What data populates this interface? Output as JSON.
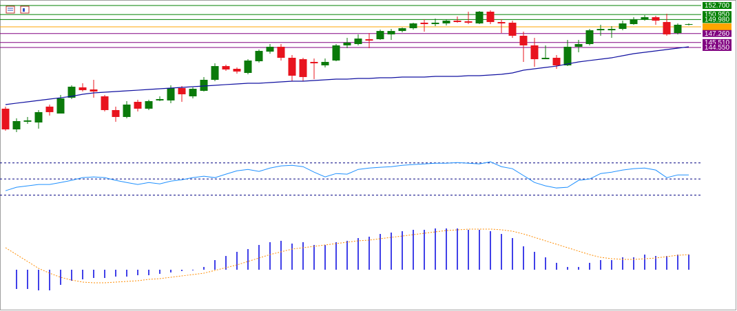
{
  "chart_data": [
    {
      "type": "candlestick",
      "categories": [
        null,
        null,
        null,
        null,
        null,
        null,
        null,
        null,
        null,
        null,
        null,
        null,
        null,
        null,
        null,
        null,
        null,
        null,
        null,
        null,
        null,
        null,
        null,
        null,
        null,
        null,
        null,
        null,
        null,
        null,
        null,
        null,
        null,
        null,
        null,
        null,
        null,
        null,
        null,
        null,
        null,
        null,
        null,
        null,
        null,
        null,
        null,
        null,
        null,
        null,
        null,
        null,
        null,
        null,
        null,
        null,
        null,
        null,
        null,
        null,
        null,
        null,
        null
      ],
      "open": [
        132.65,
        128.63,
        130.11,
        129.97,
        133.05,
        131.71,
        134.78,
        136.79,
        136.39,
        135.05,
        132.38,
        131.04,
        133.98,
        132.65,
        134.25,
        134.25,
        136.66,
        135.05,
        136.12,
        138.26,
        140.93,
        140.4,
        139.6,
        141.87,
        143.74,
        144.68,
        142.54,
        142.27,
        141.74,
        141.07,
        142.01,
        144.95,
        145.21,
        146.15,
        146.15,
        147.09,
        147.75,
        148.29,
        149.36,
        149.09,
        149.22,
        149.76,
        149.63,
        149.22,
        151.5,
        149.49,
        149.36,
        146.82,
        144.95,
        142.27,
        142.54,
        141.07,
        144.68,
        145.21,
        147.89,
        147.89,
        148.15,
        149.09,
        150.03,
        150.43,
        149.49,
        147.35,
        148.96
      ],
      "high": [
        133.05,
        130.77,
        131.04,
        132.38,
        133.45,
        135.32,
        137.19,
        137.59,
        138.26,
        135.32,
        133.05,
        134.12,
        134.38,
        134.38,
        135.05,
        137.19,
        137.06,
        136.79,
        138.8,
        141.47,
        141.2,
        140.67,
        142.27,
        144.14,
        145.21,
        145.21,
        143.07,
        142.54,
        142.41,
        142.41,
        145.21,
        146.42,
        147.09,
        147.35,
        148.02,
        148.15,
        148.42,
        149.36,
        150.03,
        150.16,
        150.03,
        150.56,
        151.5,
        151.63,
        151.76,
        150.03,
        149.76,
        147.62,
        146.42,
        144.95,
        143.07,
        146.02,
        146.02,
        148.15,
        148.96,
        148.69,
        149.76,
        150.43,
        150.83,
        150.69,
        151.1,
        149.22,
        149.22
      ],
      "low": [
        128.37,
        128.1,
        129.7,
        128.77,
        131.31,
        131.71,
        134.52,
        135.99,
        134.78,
        132.11,
        130.11,
        130.77,
        132.11,
        132.38,
        134.12,
        133.72,
        133.98,
        134.65,
        135.99,
        137.99,
        140.0,
        139.46,
        139.33,
        141.6,
        143.34,
        142.01,
        137.99,
        137.99,
        138.39,
        140.67,
        141.87,
        144.41,
        144.95,
        144.41,
        146.02,
        146.02,
        147.49,
        148.02,
        147.62,
        148.69,
        148.82,
        149.36,
        149.09,
        149.09,
        149.09,
        147.35,
        146.42,
        141.74,
        140.8,
        142.27,
        140.4,
        140.93,
        143.61,
        144.95,
        146.82,
        146.42,
        147.89,
        148.96,
        149.76,
        148.96,
        146.82,
        147.09,
        148.82
      ],
      "close": [
        128.63,
        130.24,
        130.37,
        131.98,
        131.98,
        134.65,
        136.92,
        136.25,
        135.99,
        132.38,
        131.04,
        133.45,
        132.65,
        134.12,
        134.52,
        136.66,
        135.45,
        136.52,
        138.26,
        140.93,
        140.27,
        139.87,
        142.01,
        143.88,
        144.68,
        142.54,
        139.06,
        138.8,
        141.47,
        141.74,
        144.95,
        145.48,
        146.28,
        145.88,
        147.75,
        147.75,
        148.29,
        149.22,
        149.09,
        149.36,
        149.76,
        149.49,
        149.36,
        151.5,
        149.49,
        149.22,
        146.82,
        144.95,
        142.27,
        142.54,
        141.07,
        144.68,
        145.21,
        147.89,
        148.15,
        148.15,
        149.22,
        150.03,
        150.43,
        149.76,
        147.09,
        148.96,
        149.09
      ],
      "up_color": "#0b7a0b",
      "down_color": "#e8141e",
      "moving_average": {
        "color": "#1010a0",
        "values": [
          133.45,
          133.72,
          133.98,
          134.25,
          134.52,
          134.78,
          135.05,
          135.45,
          135.72,
          135.85,
          135.99,
          136.12,
          136.25,
          136.39,
          136.52,
          136.66,
          136.79,
          136.92,
          137.06,
          137.19,
          137.33,
          137.46,
          137.59,
          137.59,
          137.73,
          137.86,
          137.99,
          137.99,
          138.13,
          138.26,
          138.39,
          138.39,
          138.53,
          138.53,
          138.66,
          138.66,
          138.8,
          138.8,
          138.8,
          138.93,
          138.93,
          138.93,
          139.06,
          139.06,
          139.2,
          139.33,
          139.6,
          140.13,
          140.4,
          140.67,
          140.93,
          141.34,
          141.74,
          142.01,
          142.27,
          142.54,
          142.94,
          143.34,
          143.61,
          143.88,
          144.14,
          144.41,
          144.68
        ]
      },
      "ylim": [
        127.03,
        153.77
      ],
      "levels": [
        {
          "value": 152.7,
          "label": "152.700",
          "color": "#008000"
        },
        {
          "value": 150.95,
          "label": "150.950",
          "color": "#008000"
        },
        {
          "value": 149.98,
          "label": "149.980",
          "color": "#008000"
        },
        {
          "value": 148.56,
          "color": "#ffa500"
        },
        {
          "value": 147.26,
          "label": "147.260",
          "color": "#800080"
        },
        {
          "value": 145.51,
          "label": "145.510",
          "color": "#800080"
        },
        {
          "value": 144.55,
          "label": "144.550",
          "color": "#800080"
        }
      ]
    },
    {
      "type": "line",
      "values": [
        35.5,
        39.8,
        41.5,
        43.2,
        43.2,
        45.7,
        48.3,
        51.7,
        52.6,
        51.7,
        48.3,
        45.7,
        43.2,
        45.7,
        44.0,
        47.4,
        49.1,
        51.7,
        53.4,
        51.7,
        56.0,
        60.2,
        61.9,
        59.4,
        63.6,
        66.2,
        67.0,
        65.3,
        58.5,
        52.6,
        56.8,
        56.0,
        61.9,
        63.6,
        64.5,
        65.3,
        67.0,
        67.9,
        68.7,
        69.6,
        69.6,
        70.4,
        69.6,
        68.7,
        71.3,
        65.3,
        62.8,
        54.3,
        45.7,
        41.5,
        38.9,
        39.8,
        48.3,
        50.0,
        56.8,
        58.5,
        61.1,
        62.8,
        63.6,
        61.1,
        51.7,
        55.1,
        55.1
      ],
      "color": "#1e90ff",
      "ylim": [
        22,
        80
      ],
      "levels": [
        30,
        50,
        70
      ],
      "level_color": "#000080"
    },
    {
      "type": "macd",
      "values": [
        null,
        -0.28,
        -0.28,
        -0.3,
        -0.3,
        -0.22,
        -0.16,
        -0.14,
        -0.12,
        -0.12,
        -0.1,
        -0.1,
        -0.08,
        -0.08,
        -0.06,
        -0.04,
        -0.02,
        -0.01,
        0.04,
        0.14,
        0.2,
        0.26,
        0.3,
        0.36,
        0.4,
        0.42,
        0.38,
        0.4,
        0.36,
        0.36,
        0.4,
        0.42,
        0.46,
        0.48,
        0.52,
        0.54,
        0.56,
        0.58,
        0.58,
        0.6,
        0.6,
        0.6,
        0.58,
        0.58,
        0.56,
        0.52,
        0.46,
        0.34,
        0.26,
        0.18,
        0.1,
        0.04,
        0.04,
        0.1,
        0.14,
        0.14,
        0.18,
        0.18,
        0.22,
        0.2,
        0.2,
        0.22,
        0.22
      ],
      "color": "#0000e0",
      "signal": {
        "color": "#ff8c00",
        "values": [
          0.32,
          0.22,
          0.12,
          0.02,
          -0.05,
          -0.11,
          -0.15,
          -0.18,
          -0.19,
          -0.19,
          -0.18,
          -0.17,
          -0.16,
          -0.14,
          -0.13,
          -0.11,
          -0.09,
          -0.07,
          -0.05,
          -0.01,
          0.03,
          0.07,
          0.12,
          0.17,
          0.22,
          0.26,
          0.3,
          0.32,
          0.34,
          0.36,
          0.38,
          0.4,
          0.42,
          0.43,
          0.45,
          0.47,
          0.49,
          0.51,
          0.53,
          0.55,
          0.57,
          0.58,
          0.59,
          0.59,
          0.59,
          0.58,
          0.56,
          0.52,
          0.47,
          0.42,
          0.37,
          0.32,
          0.27,
          0.22,
          0.18,
          0.16,
          0.15,
          0.15,
          0.16,
          0.17,
          0.19,
          0.21,
          0.22
        ]
      },
      "ylim": [
        -0.58,
        0.67
      ]
    }
  ]
}
